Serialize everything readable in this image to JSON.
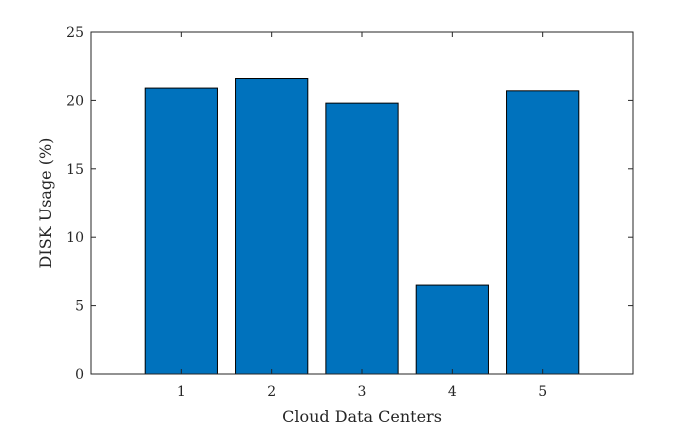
{
  "chart_data": {
    "type": "bar",
    "categories": [
      "1",
      "2",
      "3",
      "4",
      "5"
    ],
    "values": [
      20.9,
      21.6,
      19.8,
      6.5,
      20.7
    ],
    "xlabel": "Cloud Data Centers",
    "ylabel": "DISK Usage (%)",
    "ylim": [
      0,
      25
    ],
    "yticks": [
      "0",
      "5",
      "10",
      "15",
      "20",
      "25"
    ],
    "grid": false,
    "bar_color": "#0072BD"
  }
}
